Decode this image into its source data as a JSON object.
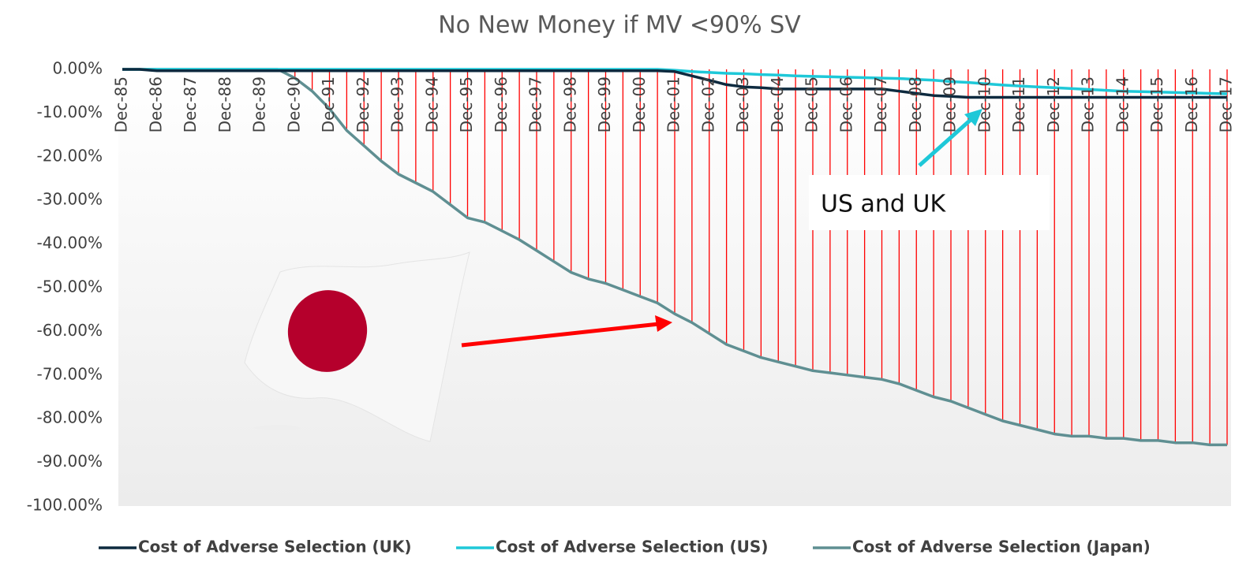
{
  "chart_data": {
    "type": "line",
    "title": "No New Money if MV <90% SV",
    "categories": [
      "Dec-85",
      null,
      "Dec-86",
      null,
      "Dec-87",
      null,
      "Dec-88",
      null,
      "Dec-89",
      null,
      "Dec-90",
      null,
      "Dec-91",
      null,
      "Dec-92",
      null,
      "Dec-93",
      null,
      "Dec-94",
      null,
      "Dec-95",
      null,
      "Dec-96",
      null,
      "Dec-97",
      null,
      "Dec-98",
      null,
      "Dec-99",
      null,
      "Dec-00",
      null,
      "Dec-01",
      null,
      "Dec-02",
      null,
      "Dec-03",
      null,
      "Dec-04",
      null,
      "Dec-05",
      null,
      "Dec-06",
      null,
      "Dec-07",
      null,
      "Dec-08",
      null,
      "Dec-09",
      null,
      "Dec-10",
      null,
      "Dec-11",
      null,
      "Dec-12",
      null,
      "Dec-13",
      null,
      "Dec-14",
      null,
      "Dec-15",
      null,
      "Dec-16",
      null,
      "Dec-17"
    ],
    "series": [
      {
        "name": "Cost of Adverse Selection (UK)",
        "color": "#0d2a3f",
        "values": [
          0,
          0,
          -0.3,
          -0.3,
          -0.3,
          -0.3,
          -0.3,
          -0.3,
          -0.3,
          -0.3,
          -0.3,
          -0.3,
          -0.3,
          -0.3,
          -0.3,
          -0.3,
          -0.3,
          -0.3,
          -0.3,
          -0.3,
          -0.3,
          -0.3,
          -0.3,
          -0.3,
          -0.3,
          -0.3,
          -0.3,
          -0.3,
          -0.3,
          -0.3,
          -0.3,
          -0.3,
          -0.5,
          -1.5,
          -2.5,
          -3.5,
          -4,
          -4.2,
          -4.5,
          -4.5,
          -4.5,
          -4.5,
          -4.5,
          -4.5,
          -4.5,
          -5,
          -5.5,
          -6,
          -6.2,
          -6.4,
          -6.4,
          -6.4,
          -6.4,
          -6.4,
          -6.4,
          -6.4,
          -6.4,
          -6.4,
          -6.4,
          -6.4,
          -6.4,
          -6.4,
          -6.4,
          -6.4,
          -6.4
        ]
      },
      {
        "name": "Cost of Adverse Selection (US)",
        "color": "#1ec8d8",
        "values": [
          0,
          0,
          0,
          0,
          0,
          0,
          0,
          0,
          0,
          0,
          0,
          0,
          0,
          0,
          0,
          0,
          0,
          0,
          0,
          0,
          0,
          0,
          0,
          0,
          0,
          0,
          0,
          0,
          0,
          0,
          0,
          0,
          -0.2,
          -0.5,
          -0.7,
          -0.9,
          -1,
          -1.2,
          -1.3,
          -1.5,
          -1.6,
          -1.7,
          -1.8,
          -1.9,
          -2,
          -2.1,
          -2.3,
          -2.5,
          -2.8,
          -3,
          -3.3,
          -3.6,
          -3.8,
          -4,
          -4.2,
          -4.4,
          -4.6,
          -4.8,
          -5,
          -5.1,
          -5.2,
          -5.3,
          -5.4,
          -5.5,
          -5.6
        ]
      },
      {
        "name": "Cost of Adverse Selection (Japan)",
        "color": "#5f8f92",
        "values": [
          0,
          0,
          0,
          0,
          0,
          0,
          0,
          0,
          0,
          0,
          -2,
          -5,
          -9,
          -14,
          -17.5,
          -21,
          -24,
          -26,
          -28,
          -31,
          -34,
          -35,
          -37,
          -39,
          -41.5,
          -44,
          -46.5,
          -48,
          -49,
          -50.5,
          -52,
          -53.5,
          -56,
          -58,
          -60.5,
          -63,
          -64.5,
          -66,
          -67,
          -68,
          -69,
          -69.5,
          -70,
          -70.5,
          -71,
          -72,
          -73.5,
          -75,
          -76,
          -77.5,
          -79,
          -80.5,
          -81.5,
          -82.5,
          -83.5,
          -84,
          -84,
          -84.5,
          -84.5,
          -85,
          -85,
          -85.5,
          -85.5,
          -86,
          -86
        ]
      }
    ],
    "drop_line_color": "#ff0000",
    "ylim": [
      -100,
      0
    ],
    "yticks": [
      {
        "value": 0,
        "label": "0.00%"
      },
      {
        "value": -10,
        "label": "-10.00%"
      },
      {
        "value": -20,
        "label": "-20.00%"
      },
      {
        "value": -30,
        "label": "-30.00%"
      },
      {
        "value": -40,
        "label": "-40.00%"
      },
      {
        "value": -50,
        "label": "-50.00%"
      },
      {
        "value": -60,
        "label": "-60.00%"
      },
      {
        "value": -70,
        "label": "-70.00%"
      },
      {
        "value": -80,
        "label": "-80.00%"
      },
      {
        "value": -90,
        "label": "-90.00%"
      },
      {
        "value": -100,
        "label": "-100.00%"
      }
    ],
    "annotation": "US and UK",
    "legend": "bottom"
  }
}
